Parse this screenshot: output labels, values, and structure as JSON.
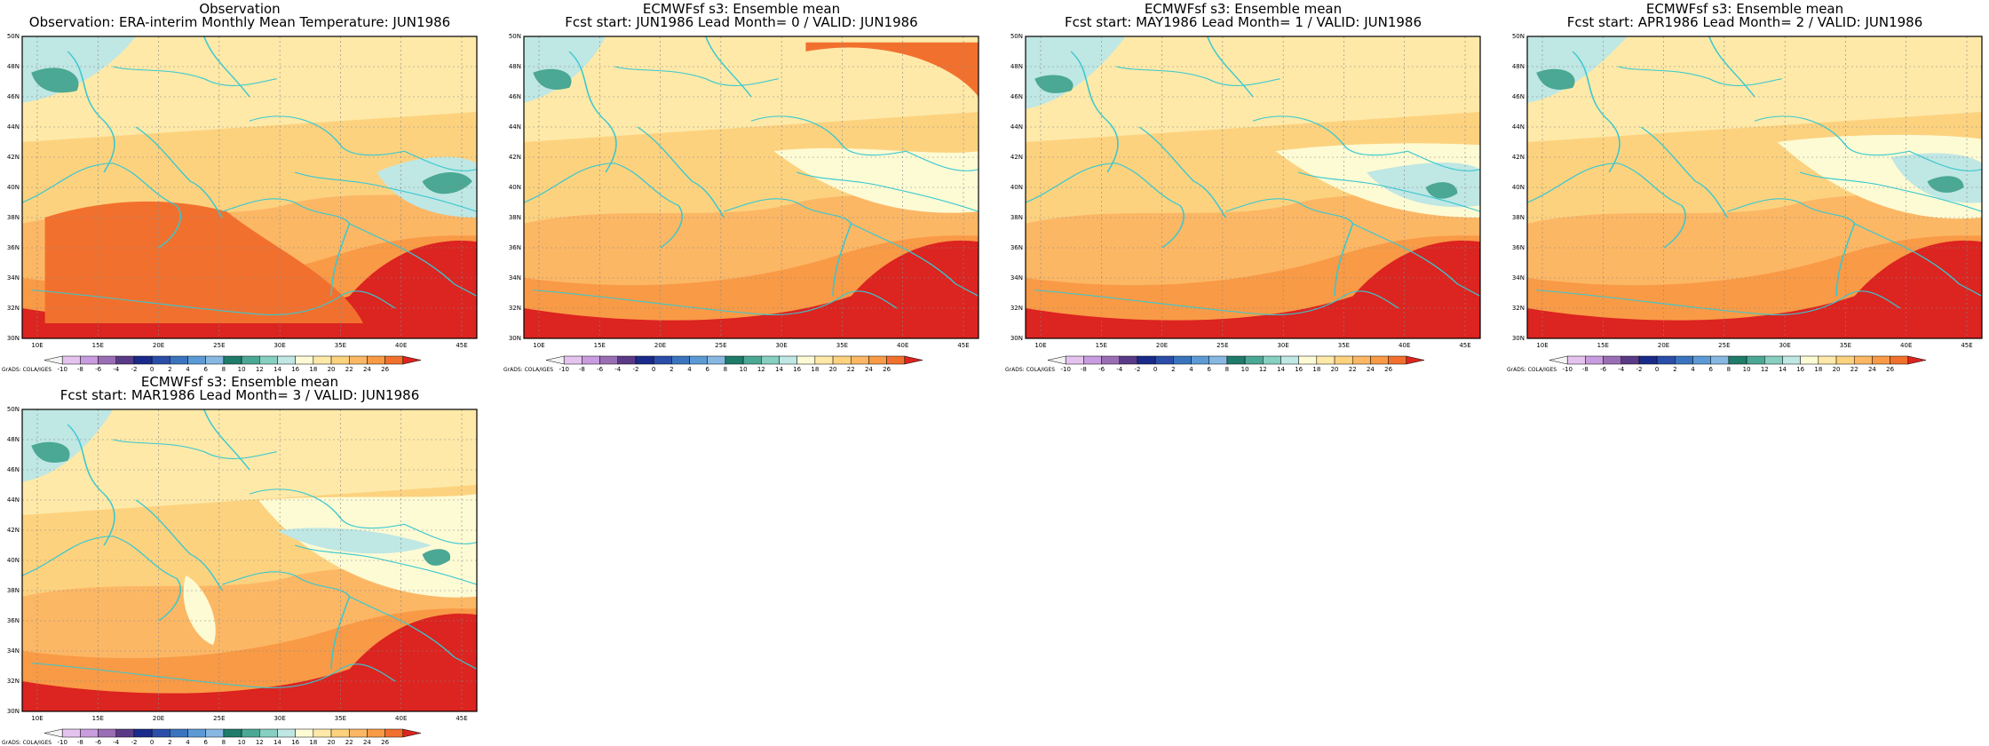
{
  "colors": {
    "scale": [
      "#f4f4f4",
      "#e4c4ee",
      "#c89cde",
      "#9a6eb4",
      "#5a3a86",
      "#1a2a8a",
      "#2a4ea8",
      "#3a74bf",
      "#5c9ad6",
      "#86b8e2",
      "#1f7c6a",
      "#4aa894",
      "#86cfc1",
      "#bfe7e4",
      "#fdfbd4",
      "#fee9a8",
      "#fdd27f",
      "#fcb765",
      "#f99a46",
      "#f2702e",
      "#dc2420"
    ],
    "coast": "#38c8d0",
    "grid": "#888888"
  },
  "colorbar_labels": [
    "-10",
    "-8",
    "-6",
    "-4",
    "-2",
    "0",
    "2",
    "4",
    "6",
    "8",
    "10",
    "12",
    "14",
    "16",
    "18",
    "20",
    "22",
    "24",
    "26"
  ],
  "axes": {
    "lat_labels": [
      "50N",
      "48N",
      "46N",
      "44N",
      "42N",
      "40N",
      "38N",
      "36N",
      "34N",
      "32N",
      "30N"
    ],
    "lon_labels": [
      "10E",
      "15E",
      "20E",
      "25E",
      "30E",
      "35E",
      "40E",
      "45E"
    ]
  },
  "credit": "GrADS: COLA/IGES",
  "panels": [
    {
      "title1": "Observation",
      "title2": "Observation: ERA-interim Monthly Mean Temperature: JUN1986"
    },
    {
      "title1": "ECMWFsf s3: Ensemble mean",
      "title2": "Fcst start: JUN1986  Lead Month= 0 / VALID: JUN1986"
    },
    {
      "title1": "ECMWFsf s3: Ensemble mean",
      "title2": "Fcst start: MAY1986  Lead Month= 1 / VALID: JUN1986"
    },
    {
      "title1": "ECMWFsf s3: Ensemble mean",
      "title2": "Fcst start: APR1986  Lead Month= 2 / VALID: JUN1986"
    },
    {
      "title1": "ECMWFsf s3: Ensemble mean",
      "title2": "Fcst start: MAR1986  Lead Month= 3 / VALID: JUN1986"
    }
  ]
}
